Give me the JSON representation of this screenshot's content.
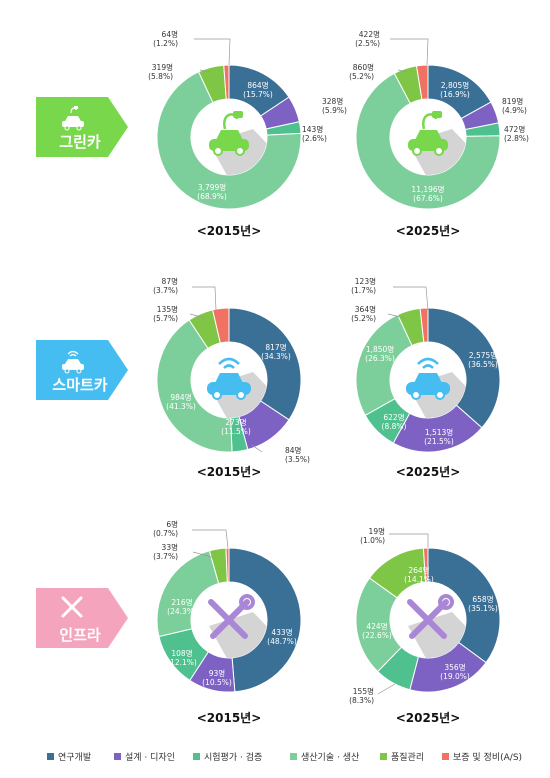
{
  "legend": [
    {
      "key": "rnd",
      "label": "연구개발",
      "color": "#3a6f96"
    },
    {
      "key": "design",
      "label": "설계 · 디자인",
      "color": "#7d62c4"
    },
    {
      "key": "test",
      "label": "시험평가 · 검증",
      "color": "#4fc18f"
    },
    {
      "key": "prod",
      "label": "생산기술 · 생산",
      "color": "#7ccf9a"
    },
    {
      "key": "qa",
      "label": "품질관리",
      "color": "#7fc646"
    },
    {
      "key": "as",
      "label": "보증 및 정비(A/S)",
      "color": "#ef7263"
    }
  ],
  "chart_data": [
    {
      "type": "pie",
      "category": "그린카",
      "category_color": "#79d74c",
      "icon": "electric-car-icon",
      "title": "<2015년>",
      "slices": [
        {
          "series": "연구개발",
          "value": 864,
          "pct": 15.7,
          "label": "864명",
          "pct_label": "(15.7%)"
        },
        {
          "series": "설계 · 디자인",
          "value": 328,
          "pct": 5.9,
          "label": "328명",
          "pct_label": "(5.9%)"
        },
        {
          "series": "시험평가 · 검증",
          "value": 143,
          "pct": 2.6,
          "label": "143명",
          "pct_label": "(2.6%)"
        },
        {
          "series": "생산기술 · 생산",
          "value": 3799,
          "pct": 68.9,
          "label": "3,799명",
          "pct_label": "(68.9%)"
        },
        {
          "series": "품질관리",
          "value": 319,
          "pct": 5.8,
          "label": "319명",
          "pct_label": "(5.8%)"
        },
        {
          "series": "보증 및 정비(A/S)",
          "value": 64,
          "pct": 1.2,
          "label": "64명",
          "pct_label": "(1.2%)"
        }
      ]
    },
    {
      "type": "pie",
      "category": "그린카",
      "category_color": "#79d74c",
      "icon": "electric-car-icon",
      "title": "<2025년>",
      "slices": [
        {
          "series": "연구개발",
          "value": 2805,
          "pct": 16.9,
          "label": "2,805명",
          "pct_label": "(16.9%)"
        },
        {
          "series": "설계 · 디자인",
          "value": 819,
          "pct": 4.9,
          "label": "819명",
          "pct_label": "(4.9%)"
        },
        {
          "series": "시험평가 · 검증",
          "value": 472,
          "pct": 2.8,
          "label": "472명",
          "pct_label": "(2.8%)"
        },
        {
          "series": "생산기술 · 생산",
          "value": 11196,
          "pct": 67.6,
          "label": "11,196명",
          "pct_label": "(67.6%)"
        },
        {
          "series": "품질관리",
          "value": 860,
          "pct": 5.2,
          "label": "860명",
          "pct_label": "(5.2%)"
        },
        {
          "series": "보증 및 정비(A/S)",
          "value": 422,
          "pct": 2.5,
          "label": "422명",
          "pct_label": "(2.5%)"
        }
      ]
    },
    {
      "type": "pie",
      "category": "스마트카",
      "category_color": "#46bdf0",
      "icon": "connected-car-icon",
      "title": "<2015년>",
      "slices": [
        {
          "series": "연구개발",
          "value": 817,
          "pct": 34.3,
          "label": "817명",
          "pct_label": "(34.3%)"
        },
        {
          "series": "설계 · 디자인",
          "value": 273,
          "pct": 11.5,
          "label": "273명",
          "pct_label": "(11.5%)"
        },
        {
          "series": "시험평가 · 검증",
          "value": 84,
          "pct": 3.5,
          "label": "84명",
          "pct_label": "(3.5%)"
        },
        {
          "series": "생산기술 · 생산",
          "value": 984,
          "pct": 41.3,
          "label": "984명",
          "pct_label": "(41.3%)"
        },
        {
          "series": "품질관리",
          "value": 135,
          "pct": 5.7,
          "label": "135명",
          "pct_label": "(5.7%)"
        },
        {
          "series": "보증 및 정비(A/S)",
          "value": 87,
          "pct": 3.7,
          "label": "87명",
          "pct_label": "(3.7%)"
        }
      ]
    },
    {
      "type": "pie",
      "category": "스마트카",
      "category_color": "#46bdf0",
      "icon": "connected-car-icon",
      "title": "<2025년>",
      "slices": [
        {
          "series": "연구개발",
          "value": 2575,
          "pct": 36.5,
          "label": "2,575명",
          "pct_label": "(36.5%)"
        },
        {
          "series": "설계 · 디자인",
          "value": 1513,
          "pct": 21.5,
          "label": "1,513명",
          "pct_label": "(21.5%)"
        },
        {
          "series": "시험평가 · 검증",
          "value": 622,
          "pct": 8.8,
          "label": "622명",
          "pct_label": "(8.8%)"
        },
        {
          "series": "생산기술 · 생산",
          "value": 1850,
          "pct": 26.3,
          "label": "1,850명",
          "pct_label": "(26.3%)"
        },
        {
          "series": "품질관리",
          "value": 364,
          "pct": 5.2,
          "label": "364명",
          "pct_label": "(5.2%)"
        },
        {
          "series": "보증 및 정비(A/S)",
          "value": 123,
          "pct": 1.7,
          "label": "123명",
          "pct_label": "(1.7%)"
        }
      ]
    },
    {
      "type": "pie",
      "category": "인프라",
      "category_color": "#f4a4bd",
      "icon": "tools-icon",
      "title": "<2015년>",
      "slices": [
        {
          "series": "연구개발",
          "value": 433,
          "pct": 48.7,
          "label": "433명",
          "pct_label": "(48.7%)"
        },
        {
          "series": "설계 · 디자인",
          "value": 93,
          "pct": 10.5,
          "label": "93명",
          "pct_label": "(10.5%)"
        },
        {
          "series": "시험평가 · 검증",
          "value": 108,
          "pct": 12.1,
          "label": "108명",
          "pct_label": "(12.1%)"
        },
        {
          "series": "생산기술 · 생산",
          "value": 216,
          "pct": 24.3,
          "label": "216명",
          "pct_label": "(24.3%)"
        },
        {
          "series": "품질관리",
          "value": 33,
          "pct": 3.7,
          "label": "33명",
          "pct_label": "(3.7%)"
        },
        {
          "series": "보증 및 정비(A/S)",
          "value": 6,
          "pct": 0.7,
          "label": "6명",
          "pct_label": "(0.7%)"
        }
      ]
    },
    {
      "type": "pie",
      "category": "인프라",
      "category_color": "#f4a4bd",
      "icon": "tools-icon",
      "title": "<2025년>",
      "slices": [
        {
          "series": "연구개발",
          "value": 658,
          "pct": 35.1,
          "label": "658명",
          "pct_label": "(35.1%)"
        },
        {
          "series": "설계 · 디자인",
          "value": 356,
          "pct": 19.0,
          "label": "356명",
          "pct_label": "(19.0%)"
        },
        {
          "series": "시험평가 · 검증",
          "value": 155,
          "pct": 8.3,
          "label": "155명",
          "pct_label": "(8.3%)"
        },
        {
          "series": "생산기술 · 생산",
          "value": 424,
          "pct": 22.6,
          "label": "424명",
          "pct_label": "(22.6%)"
        },
        {
          "series": "품질관리",
          "value": 264,
          "pct": 14.1,
          "label": "264명",
          "pct_label": "(14.1%)"
        },
        {
          "series": "보증 및 정비(A/S)",
          "value": 19,
          "pct": 1.0,
          "label": "19명",
          "pct_label": "(1.0%)"
        }
      ]
    }
  ]
}
